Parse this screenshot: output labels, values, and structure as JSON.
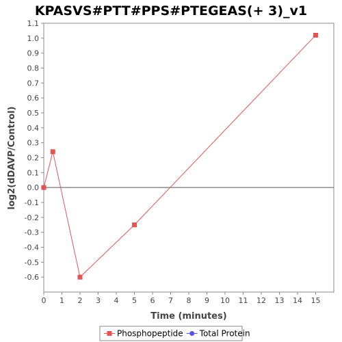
{
  "chart_data": {
    "type": "line",
    "title": "KPASVS#PTT#PPS#PTEGEAS(+ 3)_v1",
    "xlabel": "Time (minutes)",
    "ylabel": "log2(dDAVP/Control)",
    "xlim": [
      0,
      16
    ],
    "ylim": [
      -0.7,
      1.1
    ],
    "x_ticks": [
      0,
      1,
      2,
      3,
      4,
      5,
      6,
      7,
      8,
      9,
      10,
      11,
      12,
      13,
      14,
      15
    ],
    "y_ticks": [
      -0.6,
      -0.5,
      -0.4,
      -0.3,
      -0.2,
      -0.1,
      0.0,
      0.1,
      0.2,
      0.3,
      0.4,
      0.5,
      0.6,
      0.7,
      0.8,
      0.9,
      1.0,
      1.1
    ],
    "grid": false,
    "zero_line": true,
    "legend_position": "bottom",
    "series": [
      {
        "name": "Phosphopeptide",
        "color": "#e05555",
        "marker": "square",
        "x": [
          0,
          0.5,
          2,
          5,
          15
        ],
        "y": [
          0.0,
          0.24,
          -0.6,
          -0.25,
          1.02
        ]
      },
      {
        "name": "Total Protein",
        "color": "#5555e0",
        "marker": "circle",
        "x": [],
        "y": []
      }
    ]
  }
}
